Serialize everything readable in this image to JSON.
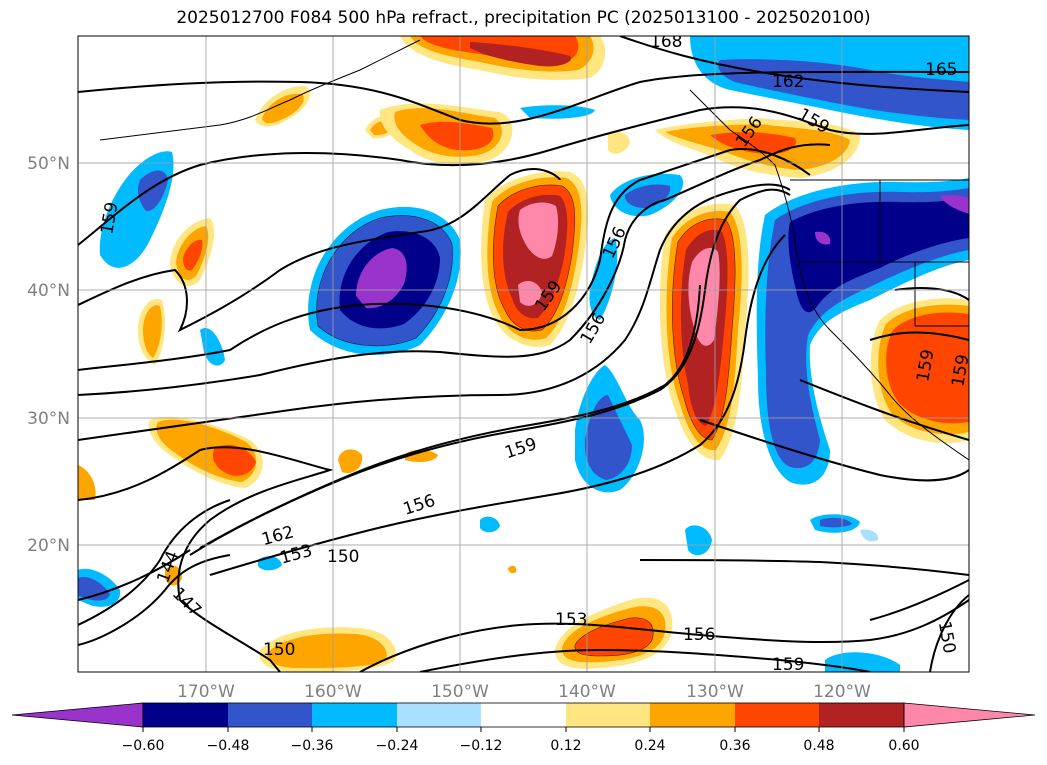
{
  "title": "2025012700 F084 500 hPa refract., precipitation PC (2025013100 - 2025020100)",
  "map": {
    "lat_labels": [
      "50°N",
      "40°N",
      "30°N",
      "20°N"
    ],
    "lon_labels": [
      "170°W",
      "160°W",
      "150°W",
      "140°W",
      "130°W",
      "120°W"
    ],
    "contour_labels": [
      "168",
      "165",
      "162",
      "159",
      "159",
      "159",
      "156",
      "156",
      "159",
      "156",
      "159",
      "159",
      "156",
      "162",
      "153",
      "150",
      "144",
      "147",
      "153",
      "156",
      "150",
      "159",
      "150"
    ]
  },
  "colorbar": {
    "ticks": [
      "−0.60",
      "−0.48",
      "−0.36",
      "−0.24",
      "−0.12",
      "0.12",
      "0.24",
      "0.36",
      "0.48",
      "0.60"
    ],
    "colors": [
      "#9933cc",
      "#00008b",
      "#3355cc",
      "#00bbff",
      "#aae0ff",
      "#ffffff",
      "#ffe680",
      "#ffa500",
      "#ff4500",
      "#b22222",
      "#ff88aa"
    ]
  }
}
